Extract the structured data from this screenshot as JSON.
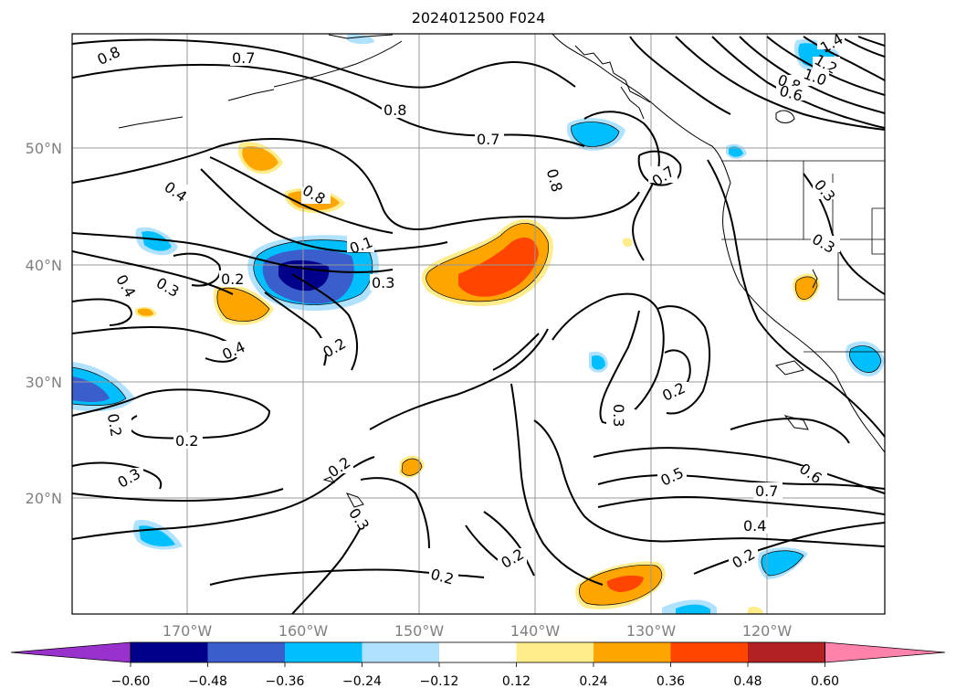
{
  "title": "2024012500 F024",
  "lat_labels": [
    "50°N",
    "40°N",
    "30°N",
    "20°N"
  ],
  "lon_labels": [
    "170°W",
    "160°W",
    "150°W",
    "140°W",
    "130°W",
    "120°W"
  ],
  "contour_labels": [
    "0.8",
    "0.7",
    "0.8",
    "0.7",
    "0.4",
    "0.8",
    "0.1",
    "0.3",
    "0.2",
    "0.3",
    "0.4",
    "0.4",
    "0.2",
    "0.2",
    "0.2",
    "0.3",
    "0.2",
    "0.3",
    "0.2",
    "0.2",
    "0.8",
    "0.7",
    "0.3",
    "0.3",
    "0.3",
    "0.2",
    "0.5",
    "0.7",
    "0.6",
    "0.4",
    "0.2",
    "1.2",
    "1.0",
    "0.8",
    "0.6",
    "1.4"
  ],
  "colorbar": {
    "colors": [
      "#9932CC",
      "#00008B",
      "#3A5FCD",
      "#00BFFF",
      "#B0E2FF",
      "#FFFFFF",
      "#FFEC8B",
      "#FFA500",
      "#FF4500",
      "#B22222",
      "#FF82AB"
    ],
    "tick_labels": [
      "−0.60",
      "−0.48",
      "−0.36",
      "−0.24",
      "−0.12",
      "0.12",
      "0.24",
      "0.36",
      "0.48",
      "0.60"
    ]
  }
}
